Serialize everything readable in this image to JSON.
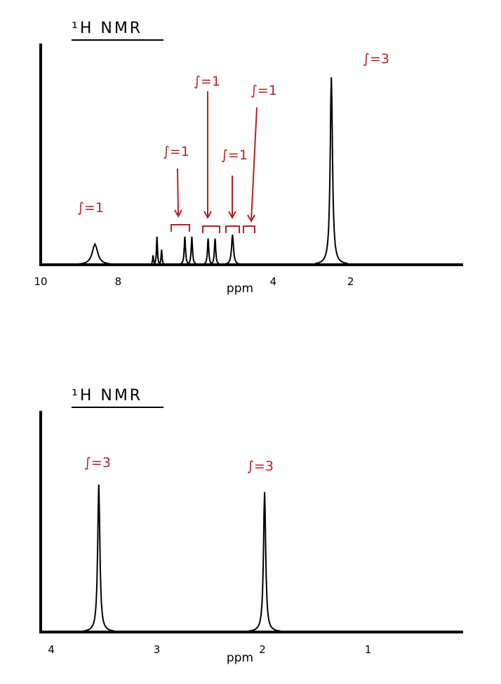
{
  "colors": {
    "ink": "#000000",
    "annotation": "#b22222"
  },
  "chart_data": [
    {
      "type": "line",
      "title": "¹H NMR",
      "xlabel": "ppm",
      "xlim": [
        10,
        -0.9
      ],
      "x_reversed": true,
      "ticks": [
        {
          "value": 10,
          "label": "10"
        },
        {
          "value": 8,
          "label": "8"
        },
        {
          "value": 4,
          "label": "4"
        },
        {
          "value": 2,
          "label": "2"
        }
      ],
      "peaks": [
        {
          "ppm": 8.6,
          "height": 0.11,
          "width": 0.17,
          "integral": "∫=1"
        },
        {
          "ppm": 7.1,
          "height": 0.05,
          "width": 0.03
        },
        {
          "ppm": 7.0,
          "height": 0.15,
          "width": 0.03,
          "integral": "∫=1"
        },
        {
          "ppm": 6.88,
          "height": 0.08,
          "width": 0.03
        },
        {
          "ppm": 6.28,
          "height": 0.15,
          "width": 0.04
        },
        {
          "ppm": 6.1,
          "height": 0.15,
          "width": 0.04,
          "integral": "∫=1"
        },
        {
          "ppm": 5.68,
          "height": 0.14,
          "width": 0.04
        },
        {
          "ppm": 5.5,
          "height": 0.14,
          "width": 0.04,
          "integral": "∫=1"
        },
        {
          "ppm": 5.05,
          "height": 0.16,
          "width": 0.06,
          "integral": "∫=1"
        },
        {
          "ppm": 2.5,
          "height": 1.0,
          "width": 0.07,
          "integral": "∫=3"
        }
      ]
    },
    {
      "type": "line",
      "title": "¹H NMR",
      "xlabel": "ppm",
      "xlim": [
        4.1,
        0.1
      ],
      "x_reversed": true,
      "ticks": [
        {
          "value": 4,
          "label": "4"
        },
        {
          "value": 3,
          "label": "3"
        },
        {
          "value": 2,
          "label": "2"
        },
        {
          "value": 1,
          "label": "1"
        }
      ],
      "peaks": [
        {
          "ppm": 3.55,
          "height": 1.0,
          "width": 0.025,
          "integral": "∫=3"
        },
        {
          "ppm": 1.98,
          "height": 0.95,
          "width": 0.025,
          "integral": "∫=3"
        }
      ]
    }
  ]
}
